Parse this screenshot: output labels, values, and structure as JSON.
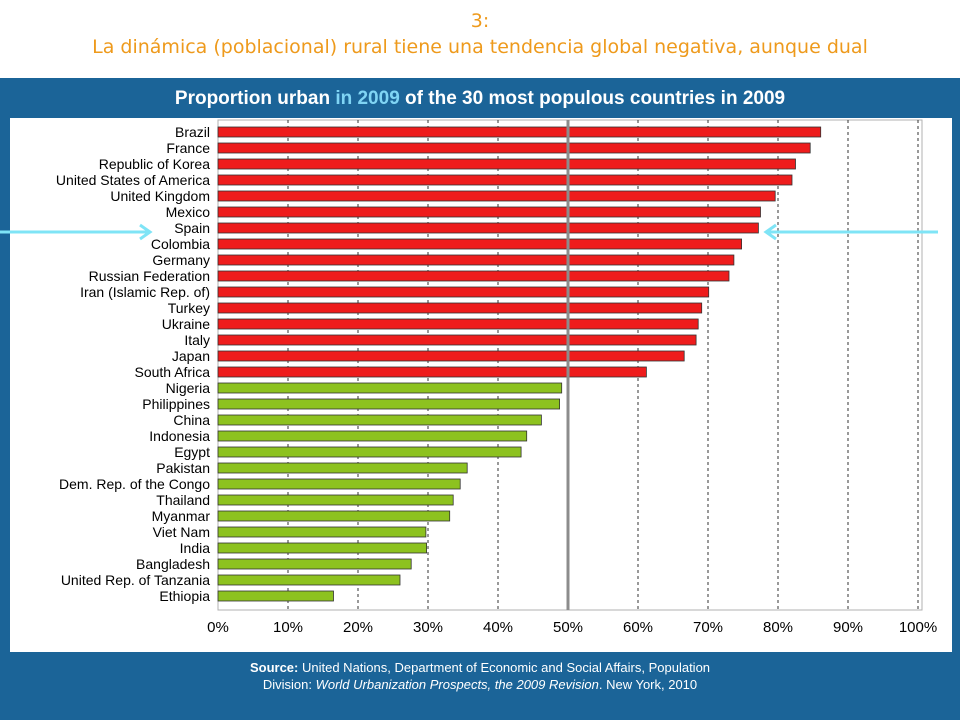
{
  "header": {
    "number": "3:",
    "subtitle": "La dinámica (poblacional) rural tiene una tendencia global negativa, aunque dual"
  },
  "chart_title": {
    "part1": "Proportion urban ",
    "highlight": "in 2009",
    "part2": " of the 30 most populous countries in 2009"
  },
  "colors": {
    "urban_majority": "#ee1c1c",
    "rural_majority": "#8dc21f",
    "panel": "#1b6498",
    "arrow": "#7fe4f6",
    "header_text": "#ee9a1c"
  },
  "chart_data": {
    "type": "bar",
    "orientation": "horizontal",
    "title": "Proportion urban in 2009 of the 30 most populous countries in 2009",
    "categories": [
      "Brazil",
      "France",
      "Republic of Korea",
      "United States of America",
      "United Kingdom",
      "Mexico",
      "Spain",
      "Colombia",
      "Germany",
      "Russian Federation",
      "Iran (Islamic Rep. of)",
      "Turkey",
      "Ukraine",
      "Italy",
      "Japan",
      "South Africa",
      "Nigeria",
      "Philippines",
      "China",
      "Indonesia",
      "Egypt",
      "Pakistan",
      "Dem. Rep. of the Congo",
      "Thailand",
      "Myanmar",
      "Viet Nam",
      "India",
      "Bangladesh",
      "United Rep. of Tanzania",
      "Ethiopia"
    ],
    "values": [
      86.1,
      84.6,
      82.5,
      82.0,
      79.6,
      77.5,
      77.2,
      74.8,
      73.7,
      73.0,
      70.1,
      69.1,
      68.6,
      68.3,
      66.6,
      61.2,
      49.1,
      48.8,
      46.2,
      44.1,
      43.3,
      35.6,
      34.6,
      33.6,
      33.1,
      29.7,
      29.8,
      27.6,
      26.0,
      16.5
    ],
    "xlim": [
      0,
      100
    ],
    "x_ticks": [
      "0%",
      "10%",
      "20%",
      "30%",
      "40%",
      "50%",
      "60%",
      "70%",
      "80%",
      "90%",
      "100%"
    ],
    "reference_line": 50,
    "highlighted": "Spain",
    "grid": "vertical dashed"
  },
  "source": {
    "label": "Source:",
    "text1": " United Nations, Department of Economic and Social Affairs, Population Division: ",
    "italic": "World Urbanization Prospects, the 2009 Revision",
    "text2": ". New York, 2010"
  }
}
